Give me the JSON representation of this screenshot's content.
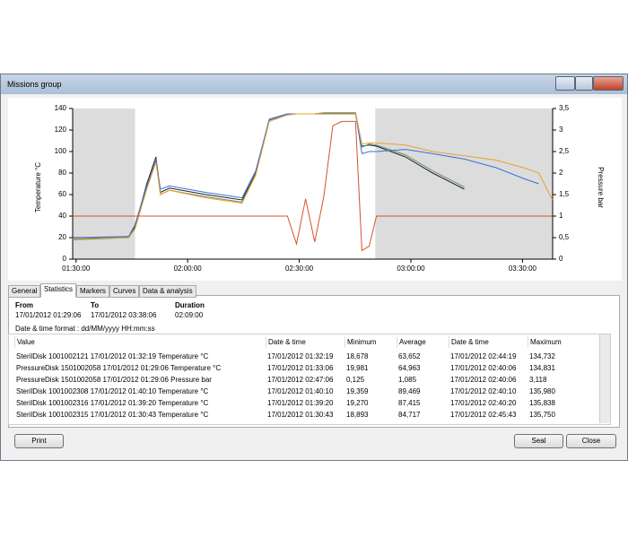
{
  "window": {
    "title": "Missions group"
  },
  "chart_data": {
    "type": "line",
    "ylabel": "Temperature °C",
    "y2label": "Pressure bar",
    "xlim": [
      5346,
      13086
    ],
    "ylim": [
      0,
      140
    ],
    "y2lim": [
      0,
      3.5
    ],
    "xticks": [
      {
        "value": 5400,
        "label": "01:30:00"
      },
      {
        "value": 7200,
        "label": "02:00:00"
      },
      {
        "value": 9000,
        "label": "02:30:00"
      },
      {
        "value": 10800,
        "label": "03:00:00"
      },
      {
        "value": 12600,
        "label": "03:30:00"
      }
    ],
    "yticks": [
      0,
      20,
      40,
      60,
      80,
      100,
      120,
      140
    ],
    "y2ticks": [
      0,
      {
        "value": 0.5,
        "label": "0,5"
      },
      1,
      {
        "value": 1.5,
        "label": "1,5"
      },
      2,
      {
        "value": 2.5,
        "label": "2,5"
      },
      3,
      {
        "value": 3.5,
        "label": "3,5"
      }
    ],
    "shaded_ranges": [
      [
        5346,
        6351
      ],
      [
        10226,
        13086
      ]
    ],
    "shade_color": "#dcdcdc",
    "grid": false,
    "x": [
      5346,
      6249,
      6351,
      6541,
      6688,
      6761,
      6907,
      7493,
      8078,
      8298,
      8517,
      8810,
      8956,
      9102,
      9249,
      9395,
      9541,
      9688,
      9907,
      10010,
      10127,
      10244,
      10712,
      11151,
      11663,
      12175,
      12615,
      12863,
      13083
    ],
    "series": [
      {
        "color": "#222222",
        "values": [
          19,
          21,
          30,
          70,
          95,
          62,
          66,
          60,
          55,
          80,
          130,
          135,
          135,
          135,
          135,
          136,
          136,
          136,
          136,
          105,
          106,
          105,
          95,
          80,
          65,
          null,
          null,
          null,
          null
        ]
      },
      {
        "color": "#6b8e6b",
        "values": [
          18,
          20,
          29,
          67,
          93,
          60,
          64,
          58,
          53,
          79,
          129,
          134,
          135,
          135,
          135,
          135,
          135,
          135,
          135,
          104,
          107,
          106,
          97,
          82,
          67,
          null,
          null,
          null,
          null
        ]
      },
      {
        "color": "#3a6fd8",
        "values": [
          20,
          21,
          32,
          68,
          92,
          65,
          68,
          62,
          57,
          82,
          130,
          135,
          135,
          135,
          135,
          136,
          136,
          136,
          136,
          98,
          100,
          100,
          102,
          98,
          93,
          85,
          75,
          70,
          null
        ]
      },
      {
        "color": "#e8a030",
        "values": [
          19,
          20,
          28,
          65,
          90,
          60,
          64,
          57,
          52,
          78,
          128,
          134,
          135,
          135,
          135,
          136,
          136,
          136,
          136,
          107,
          108,
          108,
          106,
          100,
          96,
          92,
          85,
          80,
          55
        ]
      },
      {
        "color": "#d9502a",
        "axis": "y2",
        "values": [
          1,
          1,
          1,
          1,
          1,
          1,
          1,
          1,
          1,
          1,
          1,
          1,
          0.35,
          1.4,
          0.4,
          1.45,
          3.1,
          3.2,
          3.2,
          0.2,
          0.3,
          1,
          1,
          1,
          1,
          1,
          1,
          1,
          1
        ]
      }
    ]
  },
  "tabs": [
    "General",
    "Statistics",
    "Markers",
    "Curves",
    "Data & analysis"
  ],
  "period": {
    "from_label": "From",
    "from": "17/01/2012 01:29:06",
    "to_label": "To",
    "to": "17/01/2012 03:38:06",
    "duration_label": "Duration",
    "duration": "02:09:00"
  },
  "format": "Date & time format : dd/MM/yyyy HH:mm:ss",
  "table": {
    "columns": [
      "Value",
      "Date & time",
      "Minimum",
      "Average",
      "Date & time",
      "Maximum"
    ],
    "rows": [
      [
        "SterilDisk 1001002121 17/01/2012 01:32:19 Temperature °C",
        "17/01/2012 01:32:19",
        "18,678",
        "63,652",
        "17/01/2012 02:44:19",
        "134,732"
      ],
      [
        "PressureDisk 1501002058 17/01/2012 01:29:06 Temperature °C",
        "17/01/2012 01:33:06",
        "19,981",
        "64,963",
        "17/01/2012 02:40:06",
        "134,831"
      ],
      [
        "PressureDisk 1501002058 17/01/2012 01:29:06 Pressure bar",
        "17/01/2012 02:47:06",
        "0,125",
        "1,085",
        "17/01/2012 02:40:06",
        "3,118"
      ],
      [
        "SterilDisk 1001002308 17/01/2012 01:40:10 Temperature °C",
        "17/01/2012 01:40:10",
        "19,359",
        "89,469",
        "17/01/2012 02:40:10",
        "135,980"
      ],
      [
        "SterilDisk 1001002316 17/01/2012 01:39:20 Temperature °C",
        "17/01/2012 01:39:20",
        "19,270",
        "87,415",
        "17/01/2012 02:40:20",
        "135,838"
      ],
      [
        "SterilDisk 1001002315 17/01/2012 01:30:43 Temperature °C",
        "17/01/2012 01:30:43",
        "18,893",
        "84,717",
        "17/01/2012 02:45:43",
        "135,750"
      ]
    ]
  },
  "buttons": {
    "print": "Print",
    "seal": "Seal",
    "close": "Close"
  }
}
